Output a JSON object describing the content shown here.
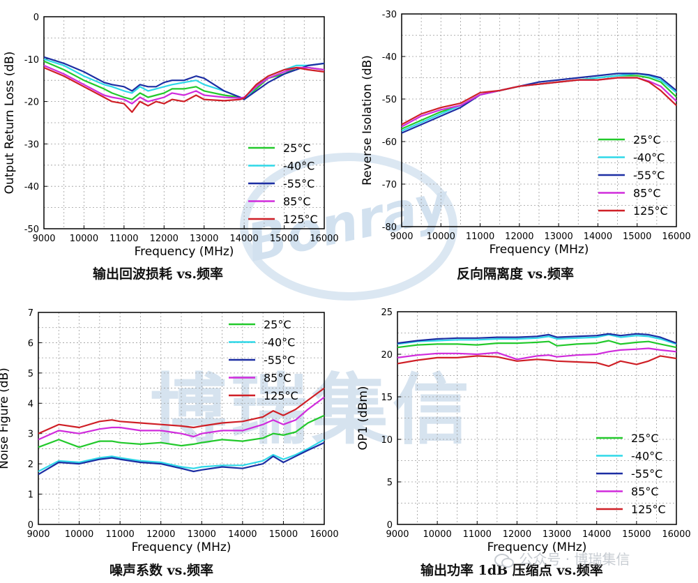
{
  "colors": {
    "t25": "#22c92b",
    "t_40": "#2fd8e8",
    "t_55": "#1c2ea3",
    "t85": "#d02bdc",
    "t125": "#cf1f26"
  },
  "watermark": {
    "center_text": "博瑞集信",
    "logo_text": "Bonray",
    "footer_text": "公众号 · 博瑞集信",
    "footer_icon": "wechat-icon"
  },
  "chart_data": [
    {
      "type": "line",
      "title": "输出回波损耗 vs.频率",
      "xlabel": "Frequency (MHz)",
      "ylabel": "Output Return Loss (dB)",
      "xlim": [
        9000,
        16000
      ],
      "ylim": [
        -50,
        0
      ],
      "xticks": [
        9000,
        10000,
        11000,
        12000,
        13000,
        14000,
        15000,
        16000
      ],
      "yticks": [
        0,
        -10,
        -20,
        -30,
        -40,
        -50
      ],
      "legend": "bottom-right",
      "x": [
        9000,
        9500,
        10000,
        10500,
        10700,
        11000,
        11200,
        11400,
        11600,
        11800,
        12000,
        12200,
        12500,
        12800,
        13000,
        13500,
        13900,
        14000,
        14300,
        14600,
        15000,
        15300,
        15600,
        16000
      ],
      "series": [
        {
          "name": "25°C",
          "color_key": "t25",
          "values": [
            -10.5,
            -12.5,
            -15,
            -17,
            -18,
            -19,
            -19.5,
            -18,
            -19,
            -18.5,
            -18,
            -17,
            -17,
            -16.5,
            -17.5,
            -18.5,
            -19,
            -19.3,
            -17,
            -14.5,
            -13.5,
            -12,
            -12,
            -12.5
          ]
        },
        {
          "name": "-40°C",
          "color_key": "t_40",
          "values": [
            -10,
            -11.5,
            -14,
            -16,
            -16.5,
            -17.5,
            -18,
            -16.5,
            -17.5,
            -17,
            -16.5,
            -16,
            -15.5,
            -15,
            -16,
            -17.5,
            -19,
            -19.5,
            -16.5,
            -14,
            -12.5,
            -11.5,
            -11.5,
            -11
          ]
        },
        {
          "name": "-55°C",
          "color_key": "t_55",
          "values": [
            -9.5,
            -11,
            -13,
            -15.5,
            -16,
            -16.5,
            -17.5,
            -16,
            -16.5,
            -16.5,
            -15.5,
            -15,
            -15,
            -14,
            -14.5,
            -17.5,
            -19,
            -19.5,
            -17.5,
            -15.5,
            -13.5,
            -12.5,
            -11.5,
            -11
          ]
        },
        {
          "name": "85°C",
          "color_key": "t85",
          "values": [
            -11.5,
            -13.5,
            -16,
            -18.5,
            -19,
            -19.5,
            -20.5,
            -19,
            -20,
            -19.5,
            -19,
            -18,
            -18.5,
            -17.5,
            -18.5,
            -19,
            -19.2,
            -19,
            -16.5,
            -14.5,
            -13,
            -12,
            -12,
            -12.5
          ]
        },
        {
          "name": "125°C",
          "color_key": "t125",
          "values": [
            -12,
            -14,
            -16.5,
            -19,
            -20,
            -20.5,
            -22.5,
            -20,
            -21,
            -20,
            -20.5,
            -19.5,
            -20,
            -18.5,
            -19.5,
            -19.8,
            -19.5,
            -19.2,
            -16,
            -14,
            -12.5,
            -12,
            -12.5,
            -13
          ]
        }
      ]
    },
    {
      "type": "line",
      "title": "反向隔离度 vs.频率",
      "xlabel": "Frequency (MHz)",
      "ylabel": "Reverse Isolation (dB)",
      "xlim": [
        9000,
        16000
      ],
      "ylim": [
        -80,
        -30
      ],
      "xticks": [
        9000,
        10000,
        11000,
        12000,
        13000,
        14000,
        15000,
        16000
      ],
      "yticks": [
        -30,
        -40,
        -50,
        -60,
        -70,
        -80
      ],
      "legend": "bottom-right",
      "x": [
        9000,
        9500,
        10000,
        10500,
        11000,
        11500,
        12000,
        12500,
        13000,
        13500,
        14000,
        14500,
        15000,
        15300,
        15600,
        16000
      ],
      "series": [
        {
          "name": "25°C",
          "color_key": "t25",
          "values": [
            -57,
            -55,
            -53,
            -51.5,
            -49,
            -48,
            -47,
            -46.5,
            -46,
            -45.5,
            -45,
            -44.5,
            -44.5,
            -45,
            -46,
            -49.5
          ]
        },
        {
          "name": "-40°C",
          "color_key": "t_40",
          "values": [
            -57.5,
            -55.5,
            -53.5,
            -51.5,
            -49,
            -48,
            -47,
            -46.5,
            -46,
            -45.5,
            -45,
            -44.5,
            -44,
            -44.5,
            -45.5,
            -48.5
          ]
        },
        {
          "name": "-55°C",
          "color_key": "t_55",
          "values": [
            -58,
            -56,
            -54,
            -52,
            -49,
            -48,
            -47,
            -46,
            -45.5,
            -45,
            -44.5,
            -44,
            -44,
            -44.3,
            -45,
            -48
          ]
        },
        {
          "name": "85°C",
          "color_key": "t85",
          "values": [
            -56.5,
            -54,
            -52.5,
            -51.5,
            -49,
            -48,
            -47,
            -46.5,
            -46,
            -45.5,
            -45.5,
            -45,
            -45,
            -45.8,
            -47,
            -50.5
          ]
        },
        {
          "name": "125°C",
          "color_key": "t125",
          "values": [
            -56,
            -53.5,
            -52,
            -51,
            -48.5,
            -48,
            -47,
            -46.5,
            -46,
            -45.5,
            -45.5,
            -45,
            -45,
            -46,
            -48,
            -51.5
          ]
        }
      ]
    },
    {
      "type": "line",
      "title": "噪声系数 vs.频率",
      "xlabel": "Frequency (MHz)",
      "ylabel": "Noise Figure (dB)",
      "xlim": [
        9000,
        16000
      ],
      "ylim": [
        0,
        7
      ],
      "xticks": [
        9000,
        10000,
        11000,
        12000,
        13000,
        14000,
        15000,
        16000
      ],
      "yticks": [
        0,
        1,
        2,
        3,
        4,
        5,
        6,
        7
      ],
      "legend": "top-right",
      "x": [
        9000,
        9500,
        10000,
        10500,
        10800,
        11000,
        11500,
        12000,
        12500,
        12800,
        13000,
        13500,
        14000,
        14500,
        14750,
        15000,
        15300,
        15600,
        16000
      ],
      "series": [
        {
          "name": "25°C",
          "color_key": "t25",
          "values": [
            2.55,
            2.8,
            2.55,
            2.75,
            2.75,
            2.7,
            2.65,
            2.7,
            2.6,
            2.65,
            2.7,
            2.8,
            2.75,
            2.85,
            3.0,
            2.95,
            3.05,
            3.35,
            3.6
          ]
        },
        {
          "name": "-40°C",
          "color_key": "t_40",
          "values": [
            1.75,
            2.1,
            2.05,
            2.2,
            2.25,
            2.2,
            2.1,
            2.05,
            1.9,
            1.85,
            1.9,
            1.95,
            1.95,
            2.1,
            2.3,
            2.15,
            2.3,
            2.5,
            2.8
          ]
        },
        {
          "name": "-55°C",
          "color_key": "t_55",
          "values": [
            1.65,
            2.05,
            2.0,
            2.15,
            2.2,
            2.15,
            2.05,
            2.0,
            1.85,
            1.75,
            1.8,
            1.9,
            1.85,
            2.0,
            2.25,
            2.05,
            2.25,
            2.45,
            2.7
          ]
        },
        {
          "name": "85°C",
          "color_key": "t85",
          "values": [
            2.8,
            3.1,
            3.0,
            3.15,
            3.2,
            3.2,
            3.1,
            3.1,
            3.0,
            2.9,
            3.0,
            3.1,
            3.1,
            3.3,
            3.45,
            3.3,
            3.45,
            3.8,
            4.2
          ]
        },
        {
          "name": "125°C",
          "color_key": "t125",
          "values": [
            3.0,
            3.3,
            3.2,
            3.4,
            3.45,
            3.4,
            3.35,
            3.3,
            3.25,
            3.2,
            3.25,
            3.35,
            3.4,
            3.55,
            3.75,
            3.6,
            3.8,
            4.1,
            4.5
          ]
        }
      ]
    },
    {
      "type": "line",
      "title": "输出功率 1dB 压缩点 vs.频率",
      "xlabel": "Frequency (MHz)",
      "ylabel": "OP1 (dBm)",
      "xlim": [
        9000,
        16000
      ],
      "ylim": [
        0,
        25
      ],
      "xticks": [
        9000,
        10000,
        11000,
        12000,
        13000,
        14000,
        15000,
        16000
      ],
      "yticks": [
        0,
        5,
        10,
        15,
        20,
        25
      ],
      "legend": "bottom-right",
      "x": [
        9000,
        9500,
        10000,
        10500,
        11000,
        11500,
        12000,
        12500,
        12800,
        13000,
        13500,
        14000,
        14300,
        14600,
        15000,
        15300,
        15600,
        16000
      ],
      "series": [
        {
          "name": "25°C",
          "color_key": "t25",
          "values": [
            20.8,
            21.1,
            21.2,
            21.2,
            21.1,
            21.3,
            21.3,
            21.4,
            21.5,
            21.0,
            21.2,
            21.3,
            21.6,
            21.2,
            21.4,
            21.5,
            21.2,
            20.8
          ]
        },
        {
          "name": "-40°C",
          "color_key": "t_40",
          "values": [
            21.2,
            21.5,
            21.6,
            21.7,
            21.7,
            21.8,
            21.8,
            21.9,
            22.1,
            21.8,
            21.9,
            22.0,
            22.3,
            22.0,
            22.2,
            22.1,
            21.8,
            21.2
          ]
        },
        {
          "name": "-55°C",
          "color_key": "t_55",
          "values": [
            21.3,
            21.6,
            21.8,
            21.9,
            21.9,
            22.0,
            22.0,
            22.1,
            22.3,
            22.0,
            22.1,
            22.2,
            22.4,
            22.2,
            22.4,
            22.3,
            22.0,
            21.3
          ]
        },
        {
          "name": "85°C",
          "color_key": "t85",
          "values": [
            19.6,
            19.9,
            20.1,
            20.1,
            20.0,
            20.2,
            19.4,
            19.8,
            19.9,
            19.7,
            19.9,
            20.0,
            20.3,
            20.5,
            20.6,
            20.7,
            20.5,
            20.3
          ]
        },
        {
          "name": "125°C",
          "color_key": "t125",
          "values": [
            18.9,
            19.3,
            19.6,
            19.6,
            19.8,
            19.7,
            19.2,
            19.4,
            19.3,
            19.2,
            19.1,
            19.0,
            18.6,
            19.2,
            18.8,
            19.2,
            19.8,
            19.5
          ]
        }
      ]
    }
  ]
}
